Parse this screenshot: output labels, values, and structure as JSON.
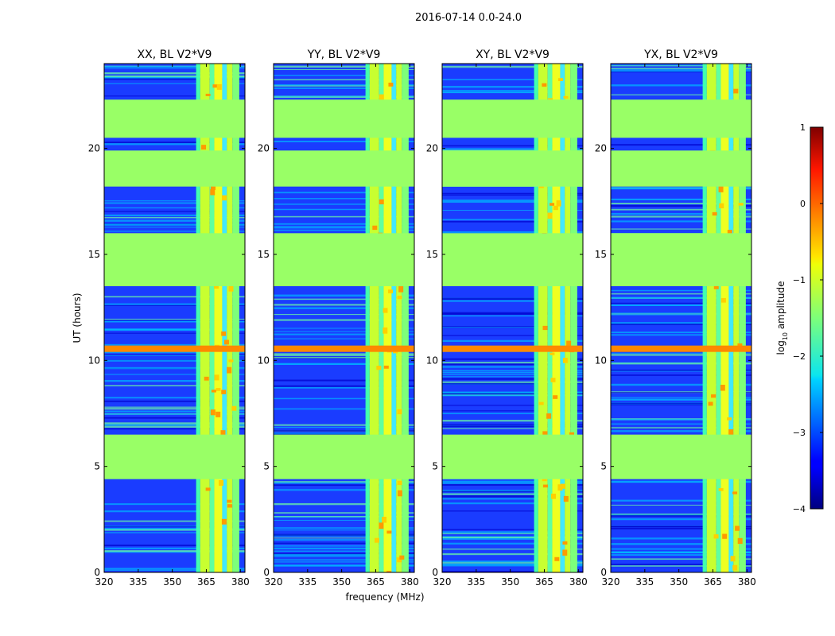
{
  "figure_title": "2016-07-14 0.0-24.0",
  "chart_data": [
    {
      "type": "heatmap",
      "title": "XX, BL V2*V9",
      "xlabel": "frequency (MHz)",
      "ylabel": "UT (hours)",
      "xlim": [
        320,
        382
      ],
      "ylim": [
        0,
        24
      ],
      "xticks": [
        320,
        335,
        350,
        365,
        380
      ],
      "yticks": [
        0,
        5,
        10,
        15,
        20
      ],
      "flagged_time_ranges_hours": [
        [
          4.4,
          6.5
        ],
        [
          13.5,
          16.0
        ],
        [
          18.2,
          19.9
        ],
        [
          20.5,
          22.3
        ]
      ],
      "rfi_band_mhz": [
        360.5,
        379.5
      ],
      "strong_rfi_time_hours": [
        10.4,
        10.7
      ]
    },
    {
      "type": "heatmap",
      "title": "YY, BL V2*V9",
      "xlabel": "frequency (MHz)",
      "ylabel": "",
      "xlim": [
        320,
        382
      ],
      "ylim": [
        0,
        24
      ],
      "xticks": [
        320,
        335,
        350,
        365,
        380
      ],
      "yticks": [
        0,
        5,
        10,
        15,
        20
      ],
      "flagged_time_ranges_hours": [
        [
          4.4,
          6.5
        ],
        [
          13.5,
          16.0
        ],
        [
          18.2,
          19.9
        ],
        [
          20.5,
          22.3
        ]
      ],
      "rfi_band_mhz": [
        360.5,
        379.5
      ],
      "strong_rfi_time_hours": [
        10.4,
        10.7
      ]
    },
    {
      "type": "heatmap",
      "title": "XY, BL V2*V9",
      "xlabel": "frequency (MHz)",
      "ylabel": "",
      "xlim": [
        320,
        382
      ],
      "ylim": [
        0,
        24
      ],
      "xticks": [
        320,
        335,
        350,
        365,
        380
      ],
      "yticks": [
        0,
        5,
        10,
        15,
        20
      ],
      "flagged_time_ranges_hours": [
        [
          4.4,
          6.5
        ],
        [
          13.5,
          16.0
        ],
        [
          18.2,
          19.9
        ],
        [
          20.5,
          22.3
        ]
      ],
      "rfi_band_mhz": [
        360.5,
        379.5
      ],
      "strong_rfi_time_hours": [
        10.4,
        10.7
      ]
    },
    {
      "type": "heatmap",
      "title": "YX, BL V2*V9",
      "xlabel": "frequency (MHz)",
      "ylabel": "",
      "xlim": [
        320,
        382
      ],
      "ylim": [
        0,
        24
      ],
      "xticks": [
        320,
        335,
        350,
        365,
        380
      ],
      "yticks": [
        0,
        5,
        10,
        15,
        20
      ],
      "flagged_time_ranges_hours": [
        [
          4.4,
          6.5
        ],
        [
          13.5,
          16.0
        ],
        [
          18.2,
          19.9
        ],
        [
          20.5,
          22.3
        ]
      ],
      "rfi_band_mhz": [
        360.5,
        379.5
      ],
      "strong_rfi_time_hours": [
        10.4,
        10.7
      ]
    }
  ],
  "colorbar": {
    "label_prefix": "log",
    "label_subscript": "10",
    "label_suffix": " amplitude",
    "range": [
      -4,
      1
    ],
    "ticks": [
      1,
      0,
      -1,
      -2,
      -3,
      -4
    ],
    "tick_labels": [
      "1",
      "0",
      "−1",
      "−2",
      "−3",
      "−4"
    ],
    "colormap": "jet",
    "flagged_color": "#99ff66"
  },
  "colors": {
    "background": "#ffffff",
    "axis": "#000000",
    "low_amplitude": "#1a3cff",
    "flagged": "#99ff66",
    "rfi_high": "#ff8800"
  }
}
